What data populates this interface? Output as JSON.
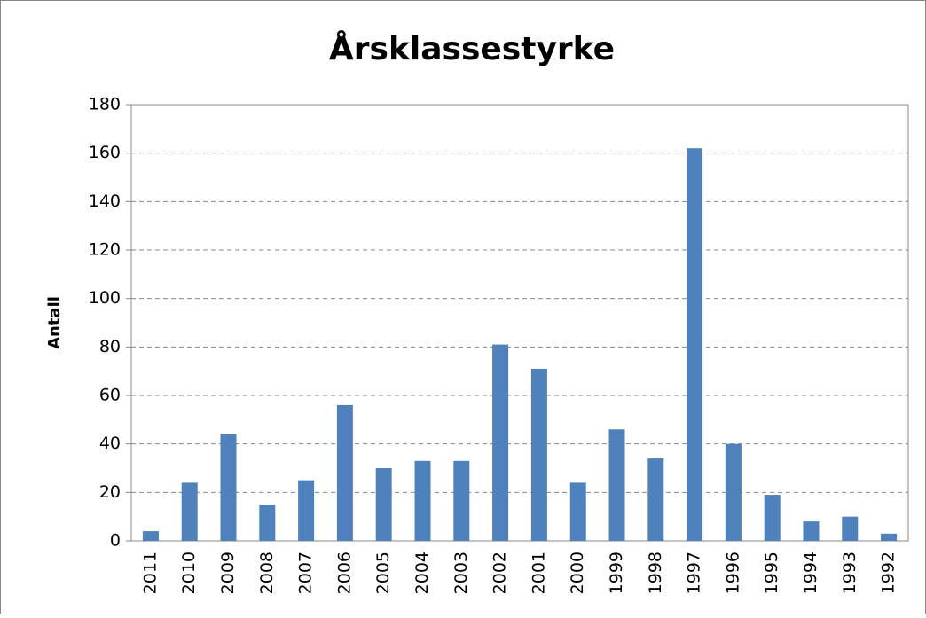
{
  "chart_data": {
    "type": "bar",
    "title": "Årsklassestyrke",
    "y_label": "Antall",
    "categories": [
      "2011",
      "2010",
      "2009",
      "2008",
      "2007",
      "2006",
      "2005",
      "2004",
      "2003",
      "2002",
      "2001",
      "2000",
      "1999",
      "1998",
      "1997",
      "1996",
      "1995",
      "1994",
      "1993",
      "1992"
    ],
    "values": [
      4,
      24,
      44,
      15,
      25,
      56,
      30,
      33,
      33,
      81,
      71,
      24,
      46,
      34,
      162,
      40,
      19,
      8,
      10,
      3
    ],
    "color": "#4f81bd",
    "ylim": [
      0,
      180
    ],
    "yticks": [
      0,
      20,
      40,
      60,
      80,
      100,
      120,
      140,
      160,
      180
    ],
    "grid": true
  }
}
